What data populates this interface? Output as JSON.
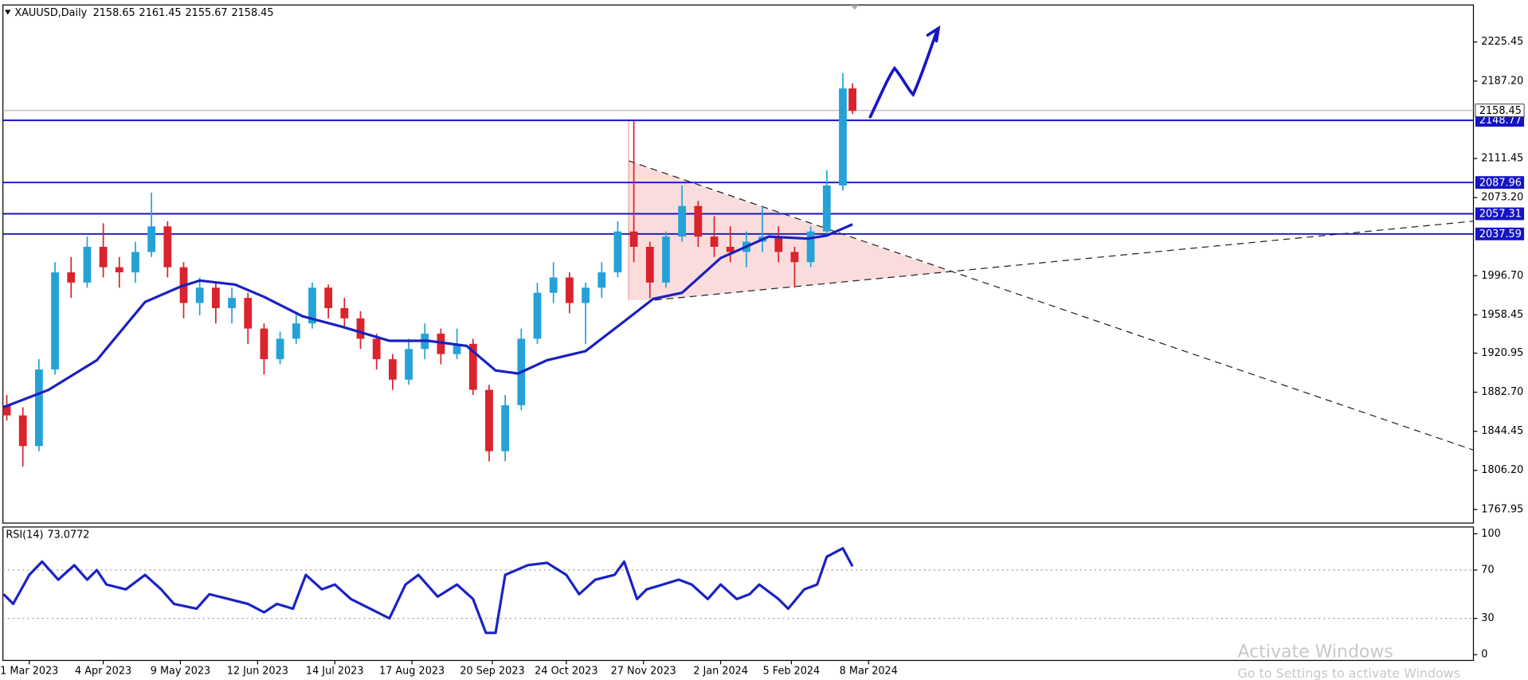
{
  "chart_data": {
    "type": "candlestick",
    "title": "XAUUSD,Daily",
    "header_values": [
      2158.65,
      2161.45,
      2155.67,
      2158.45
    ],
    "up_color": "#24a2d8",
    "down_color": "#d9232d",
    "candles": {
      "x": [
        -7,
        -2,
        3,
        8,
        13,
        18,
        23,
        28,
        33,
        38,
        43,
        48,
        53,
        58,
        63,
        68,
        73,
        78,
        83,
        88,
        93,
        98,
        103,
        108,
        113,
        118,
        123,
        128,
        133,
        138,
        143,
        148,
        153,
        158,
        163,
        168,
        173,
        178,
        183,
        188,
        193,
        198,
        203,
        208,
        213,
        218,
        223,
        228,
        233,
        238,
        243,
        248,
        253,
        256
      ],
      "open": [
        1870,
        1860,
        1830,
        1905,
        2000,
        1990,
        2025,
        2005,
        2000,
        2020,
        2045,
        2005,
        1970,
        1985,
        1965,
        1975,
        1945,
        1915,
        1935,
        1950,
        1985,
        1965,
        1955,
        1935,
        1915,
        1895,
        1925,
        1940,
        1920,
        1930,
        1885,
        1825,
        1870,
        1935,
        1980,
        1995,
        1970,
        1985,
        2000,
        2040,
        2025,
        1990,
        2035,
        2065,
        2035,
        2025,
        2020,
        2030,
        2035,
        2020,
        2010,
        2040,
        2085,
        2180
      ],
      "high": [
        1880,
        1868,
        1915,
        2010,
        2015,
        2035,
        2048,
        2015,
        2030,
        2078,
        2050,
        2010,
        1995,
        1990,
        1985,
        1980,
        1950,
        1942,
        1960,
        1990,
        1988,
        1975,
        1962,
        1940,
        1920,
        1935,
        1950,
        1945,
        1945,
        1935,
        1890,
        1880,
        1945,
        1990,
        2010,
        2000,
        1990,
        2010,
        2050,
        2148,
        2030,
        2040,
        2085,
        2070,
        2055,
        2045,
        2040,
        2065,
        2045,
        2025,
        2045,
        2100,
        2195,
        2185
      ],
      "low": [
        1855,
        1810,
        1825,
        1900,
        1975,
        1985,
        1995,
        1985,
        1990,
        2015,
        1995,
        1955,
        1958,
        1950,
        1950,
        1930,
        1900,
        1910,
        1930,
        1945,
        1955,
        1945,
        1925,
        1905,
        1885,
        1890,
        1915,
        1910,
        1915,
        1880,
        1815,
        1815,
        1865,
        1930,
        1970,
        1960,
        1930,
        1975,
        1995,
        2010,
        1975,
        1985,
        2030,
        2025,
        2015,
        2010,
        2005,
        2020,
        2010,
        1985,
        2005,
        2035,
        2080,
        2155
      ],
      "close": [
        1860,
        1830,
        1905,
        2000,
        1990,
        2025,
        2005,
        2000,
        2020,
        2045,
        2005,
        1970,
        1985,
        1965,
        1975,
        1945,
        1915,
        1935,
        1950,
        1985,
        1965,
        1955,
        1935,
        1915,
        1895,
        1925,
        1940,
        1920,
        1930,
        1885,
        1825,
        1870,
        1935,
        1980,
        1995,
        1970,
        1985,
        2000,
        2040,
        2025,
        1990,
        2035,
        2065,
        2035,
        2025,
        2020,
        2030,
        2035,
        2020,
        2010,
        2040,
        2085,
        2180,
        2158
      ]
    },
    "ma_line": {
      "color": "#1a20c0",
      "x": [
        -8,
        6,
        21,
        36,
        47,
        53,
        64,
        73,
        85,
        97,
        112,
        124,
        136,
        145,
        152,
        161,
        173,
        185,
        194,
        203,
        215,
        230,
        242,
        248,
        256
      ],
      "values": [
        1868,
        1885,
        1914,
        1971,
        1986,
        1992,
        1988,
        1976,
        1957,
        1947,
        1933,
        1933,
        1928,
        1904,
        1901,
        1914,
        1923,
        1952,
        1974,
        1980,
        2014,
        2035,
        2033,
        2036,
        2047
      ]
    },
    "levels": {
      "color": "#1414c4",
      "values": [
        2148.77,
        2087.96,
        2057.31,
        2037.59
      ]
    },
    "price_line_color": "#b4b4b4",
    "xlim": [
      -8.2,
      449.1
    ],
    "xticks": [
      {
        "value": 0,
        "label": "1 Mar 2023"
      },
      {
        "value": 23,
        "label": "4 Apr 2023"
      },
      {
        "value": 47,
        "label": "9 May 2023"
      },
      {
        "value": 71,
        "label": "12 Jun 2023"
      },
      {
        "value": 95,
        "label": "14 Jul 2023"
      },
      {
        "value": 119,
        "label": "17 Aug 2023"
      },
      {
        "value": 144,
        "label": "20 Sep 2023"
      },
      {
        "value": 167,
        "label": "24 Oct 2023"
      },
      {
        "value": 191,
        "label": "27 Nov 2023"
      },
      {
        "value": 215,
        "label": "2 Jan 2024"
      },
      {
        "value": 237,
        "label": "5 Feb 2024"
      },
      {
        "value": 261,
        "label": "8 Mar 2024"
      }
    ],
    "ylim": [
      1754.6,
      2261.7
    ],
    "yticks": [
      2225.45,
      {
        "value": 2187.2,
        "label": "2187.20"
      },
      2111.45,
      {
        "value": 2073.2,
        "label": "2073.20"
      },
      {
        "value": 1996.7,
        "label": "1996.70"
      },
      1958.45,
      1920.95,
      {
        "value": 1882.7,
        "label": "1882.70"
      },
      1844.45,
      {
        "value": 1806.2,
        "label": "1806.20"
      },
      1767.95
    ],
    "rsi": {
      "name": "RSI(14)",
      "color": "#1a22c4",
      "ylim": [
        -4.8,
        105.6
      ],
      "yticks": [
        100,
        70,
        30,
        0
      ],
      "levels": [
        70,
        30
      ],
      "x": [
        -8,
        -5,
        0,
        4,
        9,
        14,
        18,
        21,
        24,
        30,
        36,
        41,
        45,
        52,
        56,
        62,
        68,
        73,
        77,
        82,
        86,
        91,
        95,
        100,
        106,
        112,
        117,
        121,
        127,
        133,
        138,
        142,
        145,
        148,
        155,
        161,
        167,
        171,
        176,
        182,
        185,
        189,
        192,
        197,
        202,
        206,
        211,
        215,
        220,
        224,
        227,
        233,
        236,
        241,
        245,
        248,
        253,
        256
      ],
      "values": [
        50,
        42,
        66,
        77,
        62,
        74,
        62,
        70,
        58,
        54,
        66,
        54,
        42,
        38,
        50,
        46,
        42,
        35,
        42,
        38,
        66,
        54,
        58,
        46,
        38,
        30,
        58,
        66,
        48,
        58,
        46,
        18,
        18,
        66,
        74,
        76,
        66,
        50,
        62,
        66,
        77,
        46,
        54,
        58,
        62,
        58,
        46,
        58,
        46,
        50,
        58,
        46,
        38,
        54,
        58,
        81,
        88,
        73.0772
      ]
    },
    "watermark": [
      "Activate Windows",
      "Go to Settings to activate Windows"
    ]
  }
}
